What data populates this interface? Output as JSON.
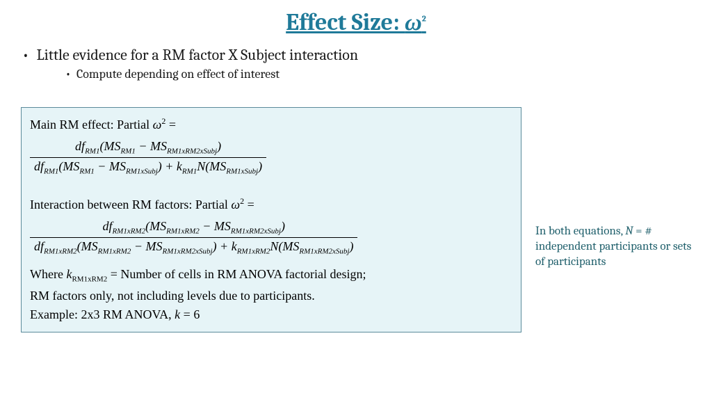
{
  "title_prefix": "Effect Size: ",
  "title_symbol": "ω",
  "title_exp": "2",
  "bullet1": "Little evidence for a RM factor X Subject interaction",
  "bullet2": "Compute depending on effect of interest",
  "box": {
    "line_main_label": "Main RM effect: Partial ",
    "omega": "ω",
    "sq": "2",
    "eq": " =",
    "main_num": "df<sub>RM1</sub>(MS<sub>RM1</sub> − MS<sub>RM1xRM2xSubj</sub>)",
    "main_den": "df<sub>RM1</sub>(MS<sub>RM1</sub> − MS<sub>RM1xSubj</sub>) + k<sub>RM1</sub>N(MS<sub>RM1xSubj</sub>)",
    "line_inter_label": "Interaction between RM factors: Partial ",
    "inter_num": "df<sub>RM1xRM2</sub>(MS<sub>RM1xRM2</sub> − MS<sub>RM1xRM2xSubj</sub>)",
    "inter_den": "df<sub>RM1xRM2</sub>(MS<sub>RM1xRM2</sub> − MS<sub>RM1xRM2xSubj</sub>) + k<sub>RM1xRM2</sub>N(MS<sub>RM1xRM2xSubj</sub>)",
    "where1_a": "Where ",
    "where1_k": "k",
    "where1_ksub": "RM1xRM2",
    "where1_b": " = Number of cells in RM ANOVA factorial design;",
    "where2": "RM factors only, not including levels due to participants.",
    "example": "Example: 2x3 RM ANOVA, k = 6"
  },
  "sidenote_a": "In both equations, ",
  "sidenote_N": "N",
  "sidenote_b": " = # independent participants or sets of participants",
  "colors": {
    "title": "#1f7a99",
    "box_bg": "#e6f4f7",
    "box_border": "#5a8a9a",
    "sidenote": "#1f5f6b"
  }
}
